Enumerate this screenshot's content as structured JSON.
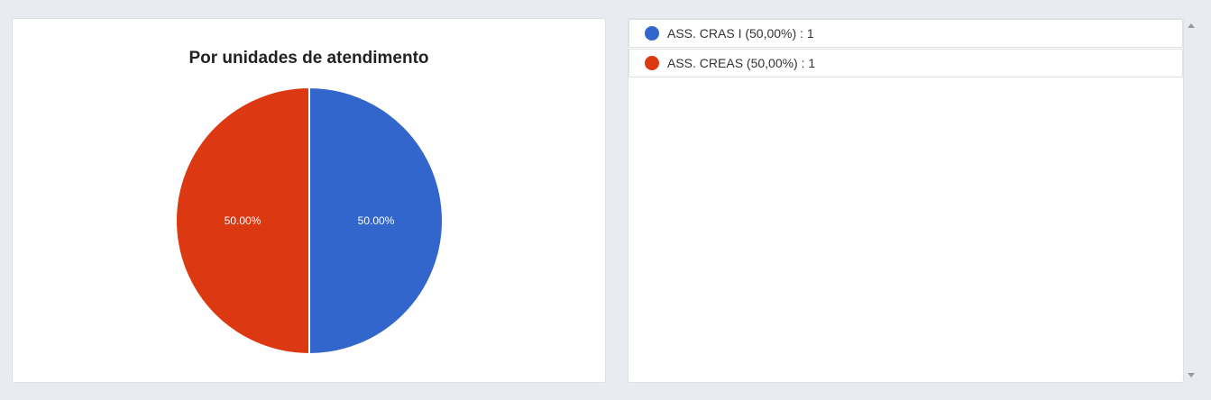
{
  "chart_data": {
    "type": "pie",
    "title": "Por unidades de atendimento",
    "slices": [
      {
        "label": "ASS. CRAS I",
        "value": 1,
        "percent_label": "50.00%",
        "color": "#3366cc"
      },
      {
        "label": "ASS. CREAS",
        "value": 1,
        "percent_label": "50.00%",
        "color": "#dc3912"
      }
    ]
  },
  "legend": {
    "items": [
      {
        "text": "ASS. CRAS I (50,00%) : 1",
        "color": "#3366cc"
      },
      {
        "text": "ASS. CREAS (50,00%) : 1",
        "color": "#dc3912"
      }
    ]
  }
}
